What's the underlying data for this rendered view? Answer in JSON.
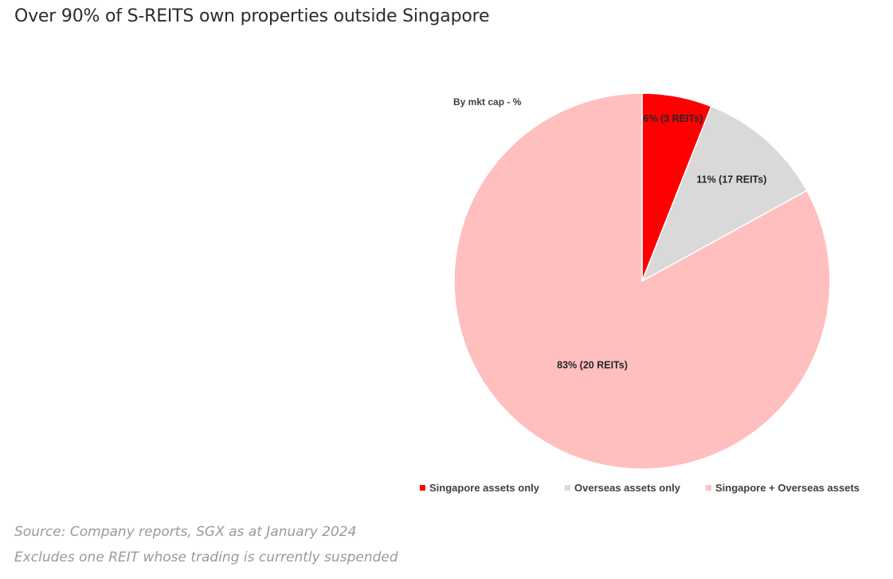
{
  "title": "Over 90% of S-REITS own properties outside Singapore",
  "chart_data": {
    "type": "pie",
    "subtitle": "By mkt cap - %",
    "slices": [
      {
        "name": "Singapore assets only",
        "value": 6,
        "label": "6% (3 REITs)",
        "color": "#ff0000"
      },
      {
        "name": "Overseas assets only",
        "value": 11,
        "label": "11% (17 REITs)",
        "color": "#d9d9d9"
      },
      {
        "name": "Singapore + Overseas assets",
        "value": 83,
        "label": "83% (20 REITs)",
        "color": "#ffbfbf"
      }
    ],
    "legend_position": "bottom"
  },
  "footnotes": {
    "source": "Source: Company reports, SGX as at January 2024",
    "note": "Excludes one REIT whose trading is currently suspended"
  }
}
